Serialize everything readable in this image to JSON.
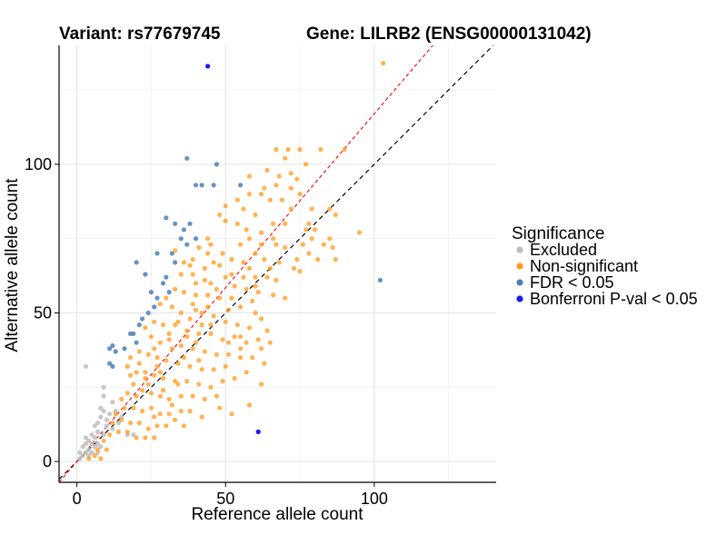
{
  "chart_data": {
    "type": "scatter",
    "title_left": "Variant: rs77679745",
    "title_right": "Gene: LILRB2 (ENSG00000131042)",
    "xlabel": "Reference allele count",
    "ylabel": "Alternative allele count",
    "xlim": [
      -6,
      141
    ],
    "ylim": [
      -7,
      140
    ],
    "xticks": [
      0,
      50,
      100
    ],
    "yticks": [
      0,
      50,
      100
    ],
    "grid": true,
    "ref_lines": [
      {
        "name": "identity",
        "slope": 1,
        "intercept": 0,
        "color": "#000000",
        "style": "dashed"
      },
      {
        "name": "fit",
        "slope": 1.17,
        "intercept": 0,
        "color": "#ff0000",
        "style": "dashed"
      }
    ],
    "legend": {
      "title": "Significance",
      "position": "right",
      "entries": [
        {
          "label": "Excluded",
          "color": "#bdbdbd"
        },
        {
          "label": "Non-significant",
          "color": "#ff9a1a"
        },
        {
          "label": "FDR < 0.05",
          "color": "#4f7fb6"
        },
        {
          "label": "Bonferroni P-val < 0.05",
          "color": "#1a1aee"
        }
      ]
    },
    "series": [
      {
        "name": "Excluded",
        "color": "#bdbdbd",
        "opacity": 0.85,
        "points": [
          [
            3,
            32
          ],
          [
            1,
            1
          ],
          [
            1,
            3
          ],
          [
            2,
            2
          ],
          [
            2,
            5
          ],
          [
            3,
            6
          ],
          [
            3,
            8
          ],
          [
            4,
            4
          ],
          [
            4,
            7
          ],
          [
            5,
            3
          ],
          [
            5,
            6
          ],
          [
            5,
            9
          ],
          [
            6,
            5
          ],
          [
            6,
            8
          ],
          [
            6,
            12
          ],
          [
            7,
            6
          ],
          [
            7,
            10
          ],
          [
            7,
            13
          ],
          [
            8,
            15
          ],
          [
            8,
            18
          ],
          [
            9,
            9
          ],
          [
            9,
            22
          ],
          [
            9,
            25
          ],
          [
            10,
            12
          ],
          [
            10,
            14
          ],
          [
            11,
            16
          ],
          [
            12,
            11
          ],
          [
            12,
            20
          ],
          [
            13,
            17
          ],
          [
            14,
            13
          ],
          [
            15,
            15
          ],
          [
            17,
            9
          ],
          [
            19,
            9
          ],
          [
            7,
            3
          ],
          [
            8,
            5
          ],
          [
            4,
            2
          ],
          [
            3,
            3
          ],
          [
            9,
            17
          ]
        ]
      },
      {
        "name": "FDR < 0.05",
        "color": "#4f7fb6",
        "opacity": 0.85,
        "points": [
          [
            37,
            102
          ],
          [
            47,
            100
          ],
          [
            40,
            93
          ],
          [
            46,
            93
          ],
          [
            42,
            93
          ],
          [
            55,
            93
          ],
          [
            30,
            82
          ],
          [
            33,
            80
          ],
          [
            36,
            78
          ],
          [
            38,
            80
          ],
          [
            40,
            75
          ],
          [
            35,
            75
          ],
          [
            37,
            73
          ],
          [
            32,
            70
          ],
          [
            33,
            67
          ],
          [
            27,
            70
          ],
          [
            20,
            67
          ],
          [
            23,
            63
          ],
          [
            30,
            62
          ],
          [
            29,
            60
          ],
          [
            31,
            57
          ],
          [
            25,
            57
          ],
          [
            27,
            55
          ],
          [
            26,
            52
          ],
          [
            24,
            50
          ],
          [
            22,
            48
          ],
          [
            21,
            46
          ],
          [
            19,
            43
          ],
          [
            18,
            43
          ],
          [
            20,
            40
          ],
          [
            16,
            38
          ],
          [
            12,
            39
          ],
          [
            11,
            38
          ],
          [
            13,
            37
          ],
          [
            11,
            33
          ],
          [
            12,
            32
          ],
          [
            102,
            61
          ]
        ]
      },
      {
        "name": "Bonferroni P-val < 0.05",
        "color": "#1a1aee",
        "opacity": 1,
        "points": [
          [
            44,
            133
          ],
          [
            61,
            10
          ]
        ]
      },
      {
        "name": "Non-significant",
        "color": "#ff9a1a",
        "opacity": 0.75,
        "points": [
          [
            103,
            134
          ],
          [
            67,
            105
          ],
          [
            71,
            105
          ],
          [
            75,
            105
          ],
          [
            82,
            105
          ],
          [
            90,
            105
          ],
          [
            70,
            102
          ],
          [
            72,
            97
          ],
          [
            74,
            95
          ],
          [
            77,
            100
          ],
          [
            67,
            93
          ],
          [
            63,
            92
          ],
          [
            58,
            90
          ],
          [
            62,
            90
          ],
          [
            65,
            88
          ],
          [
            69,
            88
          ],
          [
            72,
            92
          ],
          [
            79,
            85
          ],
          [
            85,
            85
          ],
          [
            87,
            83
          ],
          [
            56,
            85
          ],
          [
            60,
            83
          ],
          [
            54,
            80
          ],
          [
            57,
            78
          ],
          [
            50,
            81
          ],
          [
            48,
            83
          ],
          [
            58,
            75
          ],
          [
            62,
            77
          ],
          [
            66,
            75
          ],
          [
            70,
            80
          ],
          [
            78,
            80
          ],
          [
            80,
            78
          ],
          [
            70,
            72
          ],
          [
            67,
            73
          ],
          [
            76,
            73
          ],
          [
            86,
            72
          ],
          [
            81,
            68
          ],
          [
            83,
            73
          ],
          [
            79,
            75
          ],
          [
            85,
            75
          ],
          [
            95,
            77
          ],
          [
            87,
            68
          ],
          [
            78,
            70
          ],
          [
            55,
            73
          ],
          [
            60,
            70
          ],
          [
            63,
            68
          ],
          [
            68,
            67
          ],
          [
            73,
            65
          ],
          [
            75,
            64
          ],
          [
            64,
            62
          ],
          [
            58,
            65
          ],
          [
            52,
            68
          ],
          [
            49,
            70
          ],
          [
            45,
            73
          ],
          [
            44,
            75
          ],
          [
            41,
            72
          ],
          [
            46,
            67
          ],
          [
            43,
            65
          ],
          [
            39,
            68
          ],
          [
            38,
            66
          ],
          [
            35,
            63
          ],
          [
            40,
            60
          ],
          [
            45,
            60
          ],
          [
            50,
            62
          ],
          [
            53,
            59
          ],
          [
            57,
            58
          ],
          [
            61,
            57
          ],
          [
            66,
            56
          ],
          [
            70,
            55
          ],
          [
            59,
            54
          ],
          [
            55,
            52
          ],
          [
            52,
            55
          ],
          [
            48,
            55
          ],
          [
            44,
            56
          ],
          [
            40,
            56
          ],
          [
            36,
            57
          ],
          [
            33,
            58
          ],
          [
            30,
            55
          ],
          [
            28,
            53
          ],
          [
            32,
            52
          ],
          [
            35,
            50
          ],
          [
            38,
            48
          ],
          [
            42,
            50
          ],
          [
            46,
            49
          ],
          [
            50,
            47
          ],
          [
            54,
            46
          ],
          [
            58,
            45
          ],
          [
            62,
            48
          ],
          [
            64,
            44
          ],
          [
            61,
            41
          ],
          [
            57,
            40
          ],
          [
            53,
            42
          ],
          [
            49,
            41
          ],
          [
            45,
            43
          ],
          [
            41,
            43
          ],
          [
            37,
            44
          ],
          [
            33,
            46
          ],
          [
            29,
            46
          ],
          [
            26,
            47
          ],
          [
            23,
            45
          ],
          [
            25,
            42
          ],
          [
            28,
            40
          ],
          [
            31,
            41
          ],
          [
            35,
            39
          ],
          [
            39,
            38
          ],
          [
            43,
            37
          ],
          [
            47,
            36
          ],
          [
            51,
            36
          ],
          [
            55,
            35
          ],
          [
            59,
            35
          ],
          [
            62,
            38
          ],
          [
            50,
            32
          ],
          [
            46,
            31
          ],
          [
            42,
            31
          ],
          [
            38,
            32
          ],
          [
            34,
            33
          ],
          [
            30,
            34
          ],
          [
            27,
            35
          ],
          [
            24,
            36
          ],
          [
            21,
            37
          ],
          [
            18,
            35
          ],
          [
            17,
            32
          ],
          [
            20,
            30
          ],
          [
            23,
            30
          ],
          [
            26,
            29
          ],
          [
            29,
            28
          ],
          [
            33,
            27
          ],
          [
            37,
            27
          ],
          [
            41,
            26
          ],
          [
            45,
            25
          ],
          [
            49,
            27
          ],
          [
            53,
            28
          ],
          [
            57,
            30
          ],
          [
            47,
            22
          ],
          [
            43,
            21
          ],
          [
            39,
            22
          ],
          [
            35,
            22
          ],
          [
            31,
            21
          ],
          [
            28,
            22
          ],
          [
            25,
            23
          ],
          [
            22,
            24
          ],
          [
            19,
            26
          ],
          [
            17,
            23
          ],
          [
            15,
            21
          ],
          [
            16,
            18
          ],
          [
            19,
            18
          ],
          [
            22,
            17
          ],
          [
            25,
            18
          ],
          [
            28,
            16
          ],
          [
            31,
            16
          ],
          [
            35,
            17
          ],
          [
            38,
            17
          ],
          [
            30,
            12
          ],
          [
            27,
            12
          ],
          [
            24,
            11
          ],
          [
            21,
            13
          ],
          [
            18,
            13
          ],
          [
            15,
            14
          ],
          [
            13,
            16
          ],
          [
            12,
            13
          ],
          [
            14,
            10
          ],
          [
            17,
            10
          ],
          [
            20,
            8
          ],
          [
            23,
            8
          ],
          [
            26,
            8
          ],
          [
            11,
            9
          ],
          [
            9,
            7
          ],
          [
            10,
            4
          ],
          [
            7,
            4
          ],
          [
            6,
            2
          ],
          [
            8,
            1
          ],
          [
            4,
            1
          ],
          [
            55,
            42
          ],
          [
            51,
            51
          ],
          [
            47,
            58
          ],
          [
            43,
            61
          ],
          [
            39,
            63
          ],
          [
            36,
            67
          ],
          [
            33,
            71
          ],
          [
            39,
            53
          ],
          [
            42,
            46
          ],
          [
            37,
            42
          ],
          [
            32,
            38
          ],
          [
            27,
            32
          ],
          [
            23,
            28
          ],
          [
            20,
            22
          ],
          [
            52,
            63
          ],
          [
            56,
            67
          ],
          [
            60,
            62
          ],
          [
            65,
            65
          ],
          [
            48,
            66
          ],
          [
            44,
            70
          ],
          [
            62,
            73
          ],
          [
            66,
            80
          ],
          [
            72,
            85
          ],
          [
            75,
            90
          ],
          [
            58,
            96
          ],
          [
            64,
            98
          ],
          [
            68,
            96
          ],
          [
            54,
            88
          ],
          [
            50,
            86
          ],
          [
            60,
            59
          ],
          [
            56,
            62
          ],
          [
            44,
            52
          ],
          [
            40,
            51
          ],
          [
            31,
            43
          ],
          [
            34,
            47
          ],
          [
            26,
            38
          ],
          [
            21,
            33
          ],
          [
            18,
            29
          ],
          [
            24,
            26
          ],
          [
            28,
            30
          ],
          [
            36,
            35
          ],
          [
            40,
            40
          ],
          [
            45,
            46
          ],
          [
            34,
            26
          ],
          [
            29,
            24
          ],
          [
            32,
            19
          ],
          [
            26,
            15
          ],
          [
            41,
            34
          ],
          [
            51,
            40
          ],
          [
            55,
            38
          ],
          [
            60,
            50
          ],
          [
            67,
            61
          ],
          [
            74,
            68
          ],
          [
            77,
            78
          ],
          [
            52,
            16
          ],
          [
            58,
            19
          ],
          [
            62,
            26
          ],
          [
            63,
            33
          ],
          [
            65,
            40
          ],
          [
            48,
            18
          ],
          [
            42,
            15
          ],
          [
            36,
            12
          ],
          [
            33,
            14
          ]
        ]
      }
    ]
  }
}
